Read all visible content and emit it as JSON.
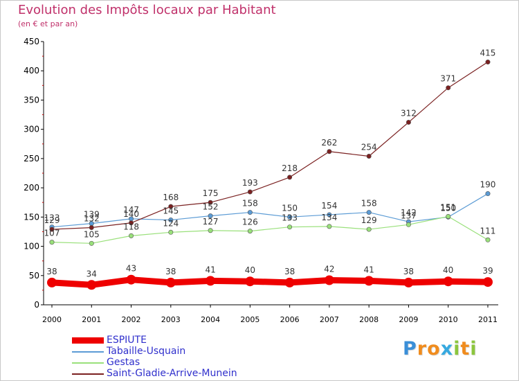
{
  "title": "Evolution des Impôts locaux par Habitant",
  "subtitle": "(en € et par an)",
  "logo": {
    "text": "Proxiti",
    "letter_colors": [
      "#3a8fd8",
      "#f08c1e",
      "#f08c1e",
      "#36a9e0",
      "#8cc63e",
      "#f08c1e",
      "#8cc63e"
    ]
  },
  "chart_data": {
    "type": "line",
    "title": "Evolution des Impôts locaux par Habitant",
    "subtitle": "(en € et par an)",
    "xlabel": "",
    "ylabel": "",
    "x": [
      "2000",
      "2001",
      "2002",
      "2003",
      "2004",
      "2005",
      "2006",
      "2007",
      "2008",
      "2009",
      "2010",
      "2011"
    ],
    "ylim": [
      0,
      450
    ],
    "yticks": [
      "0",
      "50",
      "100",
      "150",
      "200",
      "250",
      "300",
      "350",
      "400",
      "450"
    ],
    "grid": false,
    "legend_position": "bottom-left",
    "series": [
      {
        "name": "ESPIUTE",
        "color": "#ee0000",
        "values": [
          38,
          34,
          43,
          38,
          41,
          40,
          38,
          42,
          41,
          38,
          40,
          39
        ],
        "labels": [
          "38",
          "34",
          "43",
          "38",
          "41",
          "40",
          "38",
          "42",
          "41",
          "38",
          "40",
          "39"
        ],
        "emphasized": true
      },
      {
        "name": "Tabaille-Usquain",
        "color": "#5b9bd5",
        "values": [
          133,
          139,
          147,
          145,
          152,
          158,
          150,
          154,
          158,
          142,
          150,
          190
        ],
        "labels": [
          "133",
          "139",
          "147",
          "145",
          "152",
          "158",
          "150",
          "154",
          "158",
          "142",
          "150",
          "190"
        ]
      },
      {
        "name": "Gestas",
        "color": "#99e07a",
        "values": [
          107,
          105,
          118,
          124,
          127,
          126,
          133,
          134,
          129,
          137,
          151,
          111
        ],
        "labels": [
          "107",
          "105",
          "118",
          "124",
          "127",
          "126",
          "133",
          "134",
          "129",
          "137",
          "151",
          "111"
        ]
      },
      {
        "name": "Saint-Gladie-Arrive-Munein",
        "color": "#7a2020",
        "values": [
          129,
          132,
          140,
          168,
          175,
          193,
          218,
          262,
          254,
          312,
          371,
          415
        ],
        "labels": [
          "129",
          "132",
          "140",
          "168",
          "175",
          "193",
          "218",
          "262",
          "254",
          "312",
          "371",
          "415"
        ]
      }
    ]
  }
}
